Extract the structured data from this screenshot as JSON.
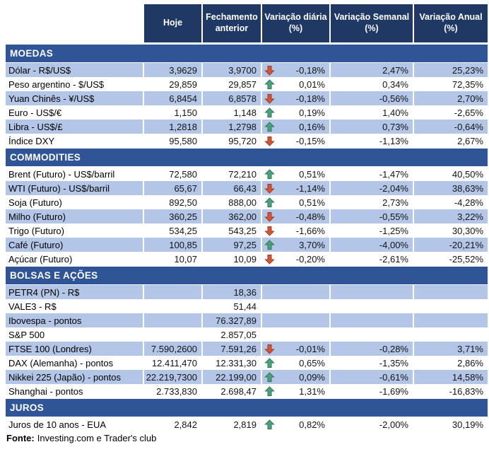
{
  "chart_data": {
    "type": "table",
    "columns": [
      "Hoje",
      "Fechamento anterior",
      "Variação diária (%)",
      "Variação Semanal (%)",
      "Variação Anual (%)"
    ],
    "sections": [
      {
        "title": "MOEDAS",
        "rows": [
          {
            "label": "Dólar - R$/US$",
            "hoje": "3,9629",
            "fechamento": "3,9700",
            "arrow": "down",
            "daily": "-0,18%",
            "weekly": "2,47%",
            "annual": "25,23%"
          },
          {
            "label": "Peso argentino - $/US$",
            "hoje": "29,859",
            "fechamento": "29,857",
            "arrow": "up",
            "daily": "0,01%",
            "weekly": "0,34%",
            "annual": "72,35%"
          },
          {
            "label": "Yuan Chinês - ¥/US$",
            "hoje": "6,8454",
            "fechamento": "6,8578",
            "arrow": "down",
            "daily": "-0,18%",
            "weekly": "-0,56%",
            "annual": "2,70%"
          },
          {
            "label": "Euro - US$/€",
            "hoje": "1,150",
            "fechamento": "1,148",
            "arrow": "up",
            "daily": "0,19%",
            "weekly": "1,40%",
            "annual": "-2,65%"
          },
          {
            "label": "Libra - US$/£",
            "hoje": "1,2818",
            "fechamento": "1,2798",
            "arrow": "up",
            "daily": "0,16%",
            "weekly": "0,73%",
            "annual": "-0,64%"
          },
          {
            "label": "Índice DXY",
            "hoje": "95,580",
            "fechamento": "95,720",
            "arrow": "down",
            "daily": "-0,15%",
            "weekly": "-1,13%",
            "annual": "2,67%"
          }
        ]
      },
      {
        "title": "COMMODITIES",
        "rows": [
          {
            "label": "Brent (Futuro) - US$/barril",
            "hoje": "72,580",
            "fechamento": "72,210",
            "arrow": "up",
            "daily": "0,51%",
            "weekly": "-1,47%",
            "annual": "40,50%"
          },
          {
            "label": "WTI (Futuro) - US$/barril",
            "hoje": "65,67",
            "fechamento": "66,43",
            "arrow": "down",
            "daily": "-1,14%",
            "weekly": "-2,04%",
            "annual": "38,63%"
          },
          {
            "label": "Soja (Futuro)",
            "hoje": "892,50",
            "fechamento": "888,00",
            "arrow": "up",
            "daily": "0,51%",
            "weekly": "2,73%",
            "annual": "-4,28%"
          },
          {
            "label": "Milho (Futuro)",
            "hoje": "360,25",
            "fechamento": "362,00",
            "arrow": "down",
            "daily": "-0,48%",
            "weekly": "-0,55%",
            "annual": "3,22%"
          },
          {
            "label": "Trigo (Futuro)",
            "hoje": "534,25",
            "fechamento": "543,25",
            "arrow": "down",
            "daily": "-1,66%",
            "weekly": "-1,25%",
            "annual": "30,30%"
          },
          {
            "label": "Café (Futuro)",
            "hoje": "100,85",
            "fechamento": "97,25",
            "arrow": "up",
            "daily": "3,70%",
            "weekly": "-4,00%",
            "annual": "-20,21%"
          },
          {
            "label": "Açúcar (Futuro)",
            "hoje": "10,07",
            "fechamento": "10,09",
            "arrow": "down",
            "daily": "-0,20%",
            "weekly": "-2,61%",
            "annual": "-25,52%"
          }
        ]
      },
      {
        "title": "BOLSAS E AÇÕES",
        "rows": [
          {
            "label": "PETR4 (PN) - R$",
            "hoje": "",
            "fechamento": "18,36",
            "arrow": "none",
            "daily": "",
            "weekly": "",
            "annual": ""
          },
          {
            "label": "VALE3 - R$",
            "hoje": "",
            "fechamento": "51,44",
            "arrow": "none",
            "daily": "",
            "weekly": "",
            "annual": ""
          },
          {
            "label": "Ibovespa - pontos",
            "hoje": "",
            "fechamento": "76.327,89",
            "arrow": "none",
            "daily": "",
            "weekly": "",
            "annual": ""
          },
          {
            "label": "S&P 500",
            "hoje": "",
            "fechamento": "2.857,05",
            "arrow": "none",
            "daily": "",
            "weekly": "",
            "annual": ""
          },
          {
            "label": "FTSE 100 (Londres)",
            "hoje": "7.590,2600",
            "fechamento": "7.591,26",
            "arrow": "down",
            "daily": "-0,01%",
            "weekly": "-0,28%",
            "annual": "3,71%"
          },
          {
            "label": "DAX (Alemanha) - pontos",
            "hoje": "12.411,470",
            "fechamento": "12.331,30",
            "arrow": "up",
            "daily": "0,65%",
            "weekly": "-1,35%",
            "annual": "2,86%"
          },
          {
            "label": "Nikkei 225 (Japão) - pontos",
            "hoje": "22.219,7300",
            "fechamento": "22.199,00",
            "arrow": "up",
            "daily": "0,09%",
            "weekly": "-0,61%",
            "annual": "14,58%"
          },
          {
            "label": "Shanghai - pontos",
            "hoje": "2.733,830",
            "fechamento": "2.698,47",
            "arrow": "up",
            "daily": "1,31%",
            "weekly": "-1,69%",
            "annual": "-16,83%"
          }
        ]
      },
      {
        "title": "JUROS",
        "rows": [
          {
            "label": "Juros de 10 anos - EUA",
            "hoje": "2,842",
            "fechamento": "2,819",
            "arrow": "up",
            "daily": "0,82%",
            "weekly": "-2,00%",
            "annual": "30,19%"
          }
        ]
      }
    ]
  },
  "footer": {
    "source_label": "Fonte:",
    "source_text": "Investing.com e Trader's club"
  },
  "colors": {
    "header_bg": "#1F3864",
    "section_bg": "#2F5597",
    "row_shaded": "#B4C6E7",
    "up_arrow": "#4BA17E",
    "up_arrow_border": "#2E7254",
    "down_arrow": "#D0563A",
    "down_arrow_border": "#9C3A22"
  }
}
